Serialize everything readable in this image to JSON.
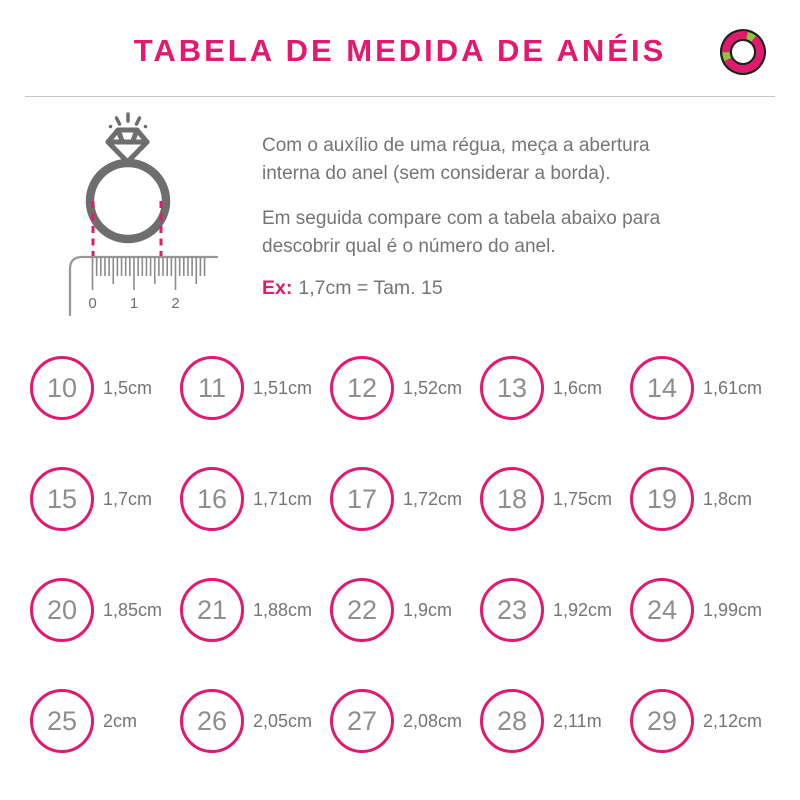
{
  "header": {
    "title": "TABELA DE MEDIDA DE ANÉIS",
    "logo_icon": "ring-logo"
  },
  "instructions": {
    "paragraph1": "Com o auxílio de uma régua, meça a abertura interna do anel (sem considerar a borda).",
    "paragraph2": "Em seguida compare com a tabela abaixo para descobrir qual é o número do anel.",
    "example_label": "Ex:",
    "example_value": "1,7cm = Tam. 15"
  },
  "ruler": {
    "labels": [
      "0",
      "1",
      "2"
    ]
  },
  "chart_data": {
    "type": "table",
    "title": "Tabela de medida de anéis",
    "columns": [
      "tamanho_do_anel",
      "medida_interna"
    ],
    "rows": [
      [
        "10",
        "1,5cm"
      ],
      [
        "11",
        "1,51cm"
      ],
      [
        "12",
        "1,52cm"
      ],
      [
        "13",
        "1,6cm"
      ],
      [
        "14",
        "1,61cm"
      ],
      [
        "15",
        "1,7cm"
      ],
      [
        "16",
        "1,71cm"
      ],
      [
        "17",
        "1,72cm"
      ],
      [
        "18",
        "1,75cm"
      ],
      [
        "19",
        "1,8cm"
      ],
      [
        "20",
        "1,85cm"
      ],
      [
        "21",
        "1,88cm"
      ],
      [
        "22",
        "1,9cm"
      ],
      [
        "23",
        "1,92cm"
      ],
      [
        "24",
        "1,99cm"
      ],
      [
        "25",
        "2cm"
      ],
      [
        "26",
        "2,05cm"
      ],
      [
        "27",
        "2,08cm"
      ],
      [
        "28",
        "2,11m"
      ],
      [
        "29",
        "2,12cm"
      ]
    ],
    "layout": {
      "grid_columns": 5,
      "grid_rows": 4
    }
  },
  "colors": {
    "accent_pink": "#E3186F",
    "text_gray": "#757575",
    "number_gray": "#8E8E8E",
    "illustration_gray": "#6E6E6E",
    "logo_green": "#8CC63F",
    "logo_outline": "#221E1F"
  }
}
